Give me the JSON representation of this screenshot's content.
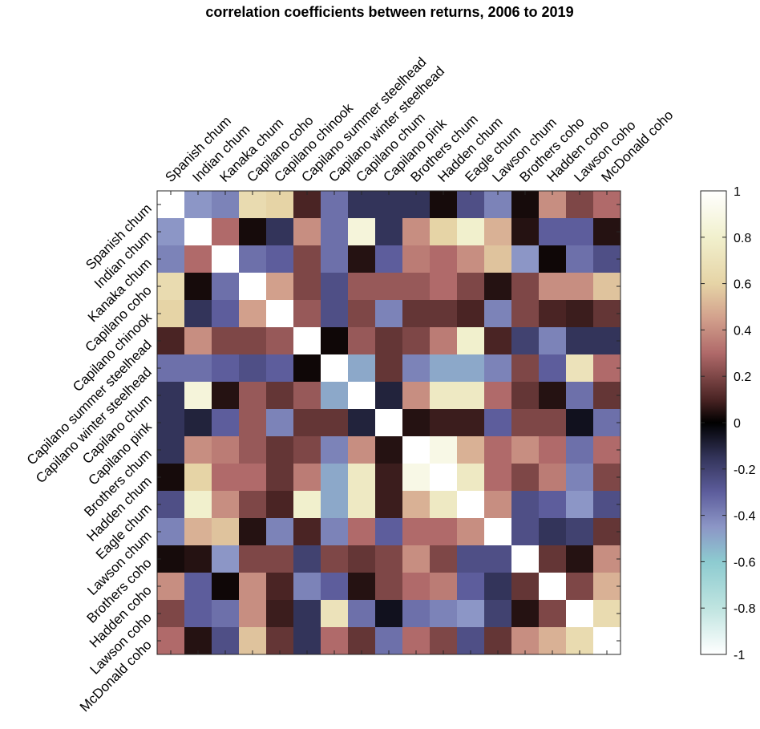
{
  "chart_data": {
    "type": "heatmap",
    "title": "correlation coefficients between returns, 2006 to 2019",
    "labels": [
      "Spanish chum",
      "Indian chum",
      "Kanaka chum",
      "Capilano coho",
      "Capilano chinook",
      "Capilano summer steelhead",
      "Capilano winter steelhead",
      "Capilano chum",
      "Capilano pink",
      "Brothers chum",
      "Hadden chum",
      "Eagle chum",
      "Lawson chum",
      "Brothers coho",
      "Hadden coho",
      "Lawson coho",
      "McDonald coho"
    ],
    "values": [
      [
        1.0,
        -0.45,
        -0.4,
        0.65,
        0.6,
        0.1,
        -0.35,
        -0.15,
        -0.15,
        -0.15,
        0.03,
        -0.25,
        -0.4,
        0.03,
        0.4,
        0.2,
        0.3
      ],
      [
        -0.45,
        1.0,
        0.3,
        0.03,
        -0.15,
        0.4,
        -0.35,
        0.85,
        -0.15,
        0.4,
        0.6,
        0.8,
        0.5,
        0.05,
        -0.3,
        -0.3,
        0.05
      ],
      [
        -0.4,
        0.3,
        1.0,
        -0.35,
        -0.3,
        0.2,
        -0.35,
        0.05,
        -0.3,
        0.35,
        0.3,
        0.4,
        0.55,
        -0.45,
        0.02,
        -0.35,
        -0.25
      ],
      [
        0.65,
        0.03,
        -0.35,
        1.0,
        0.45,
        0.2,
        -0.25,
        0.25,
        0.25,
        0.25,
        0.3,
        0.2,
        0.05,
        0.2,
        0.4,
        0.4,
        0.55
      ],
      [
        0.6,
        -0.15,
        -0.3,
        0.45,
        1.0,
        0.25,
        -0.25,
        0.2,
        -0.4,
        0.15,
        0.15,
        0.1,
        -0.4,
        0.2,
        0.1,
        0.08,
        0.15
      ],
      [
        0.1,
        0.4,
        0.2,
        0.2,
        0.25,
        1.0,
        0.02,
        0.25,
        0.15,
        0.2,
        0.35,
        0.8,
        0.1,
        -0.2,
        -0.4,
        -0.15,
        -0.15
      ],
      [
        -0.35,
        -0.35,
        -0.3,
        -0.25,
        -0.3,
        0.02,
        1.0,
        -0.5,
        0.15,
        -0.4,
        -0.5,
        -0.5,
        -0.4,
        0.2,
        -0.3,
        0.7,
        0.3
      ],
      [
        -0.15,
        0.85,
        0.05,
        0.25,
        0.15,
        0.25,
        -0.5,
        1.0,
        -0.1,
        0.4,
        0.75,
        0.75,
        0.3,
        0.15,
        0.05,
        -0.35,
        0.15
      ],
      [
        -0.15,
        -0.1,
        -0.3,
        0.25,
        -0.4,
        0.15,
        0.15,
        -0.1,
        1.0,
        0.05,
        0.08,
        0.08,
        -0.3,
        0.2,
        0.2,
        -0.05,
        -0.35
      ],
      [
        -0.15,
        0.4,
        0.35,
        0.25,
        0.15,
        0.2,
        -0.4,
        0.4,
        0.05,
        1.0,
        0.9,
        0.5,
        0.3,
        0.4,
        0.3,
        -0.35,
        0.3
      ],
      [
        0.03,
        0.6,
        0.3,
        0.3,
        0.15,
        0.35,
        -0.5,
        0.75,
        0.08,
        0.9,
        1.0,
        0.75,
        0.3,
        0.2,
        0.35,
        -0.4,
        0.2
      ],
      [
        -0.25,
        0.8,
        0.4,
        0.2,
        0.1,
        0.8,
        -0.5,
        0.75,
        0.08,
        0.5,
        0.75,
        1.0,
        0.4,
        -0.25,
        -0.3,
        -0.45,
        -0.25
      ],
      [
        -0.4,
        0.5,
        0.55,
        0.05,
        -0.4,
        0.1,
        -0.4,
        0.3,
        -0.3,
        0.3,
        0.3,
        0.4,
        1.0,
        -0.25,
        -0.15,
        -0.2,
        0.15
      ],
      [
        0.03,
        0.05,
        -0.45,
        0.2,
        0.2,
        -0.2,
        0.2,
        0.15,
        0.2,
        0.4,
        0.2,
        -0.25,
        -0.25,
        1.0,
        0.15,
        0.05,
        0.4
      ],
      [
        0.4,
        -0.3,
        0.02,
        0.4,
        0.1,
        -0.4,
        -0.3,
        0.05,
        0.2,
        0.3,
        0.35,
        -0.3,
        -0.15,
        0.15,
        1.0,
        0.2,
        0.5
      ],
      [
        0.2,
        -0.3,
        -0.35,
        0.4,
        0.08,
        -0.15,
        0.7,
        -0.35,
        -0.05,
        -0.35,
        -0.4,
        -0.45,
        -0.2,
        0.05,
        0.2,
        1.0,
        0.65
      ],
      [
        0.3,
        0.05,
        -0.25,
        0.55,
        0.15,
        -0.15,
        0.3,
        0.15,
        -0.35,
        0.3,
        0.2,
        -0.25,
        0.15,
        0.4,
        0.5,
        0.65,
        1.0
      ]
    ],
    "colorbar": {
      "min": -1,
      "max": 1,
      "ticks": [
        "1",
        "0.8",
        "0.6",
        "0.4",
        "0.2",
        "0",
        "-0.2",
        "-0.4",
        "-0.6",
        "-0.8",
        "-1"
      ]
    },
    "colormap_stops": [
      {
        "v": -1.0,
        "color": "#ffffff"
      },
      {
        "v": -0.8,
        "color": "#bfe4e0"
      },
      {
        "v": -0.6,
        "color": "#8dcbd0"
      },
      {
        "v": -0.45,
        "color": "#8c96c6"
      },
      {
        "v": -0.3,
        "color": "#5d5d9c"
      },
      {
        "v": -0.15,
        "color": "#33345a"
      },
      {
        "v": 0.0,
        "color": "#000000"
      },
      {
        "v": 0.1,
        "color": "#4a2424"
      },
      {
        "v": 0.2,
        "color": "#7e4747"
      },
      {
        "v": 0.3,
        "color": "#b06a6a"
      },
      {
        "v": 0.45,
        "color": "#d2a08c"
      },
      {
        "v": 0.6,
        "color": "#e6d4a6"
      },
      {
        "v": 0.8,
        "color": "#f1f0cd"
      },
      {
        "v": 1.0,
        "color": "#ffffff"
      }
    ]
  }
}
